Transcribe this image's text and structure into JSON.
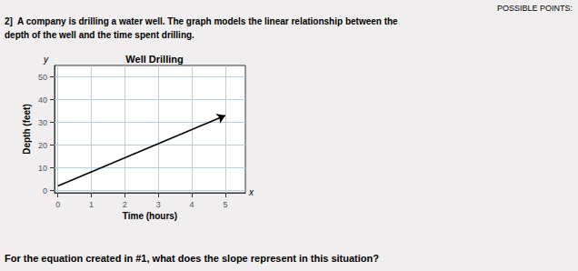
{
  "chart_data": {
    "type": "line",
    "title": "Well Drilling",
    "xlabel": "Time (hours)",
    "ylabel": "Depth (feet)",
    "x": [
      0,
      5.0
    ],
    "values": [
      2,
      33
    ],
    "color": "#000000",
    "xlim": [
      -0.1,
      5.6
    ],
    "ylim": [
      -1,
      55
    ],
    "xticks": [
      0,
      1,
      2,
      3,
      4,
      5
    ],
    "yticks": [
      0,
      10,
      20,
      30,
      40,
      50
    ],
    "grid": true,
    "header": [
      "2]  A company is drilling a water well. The graph models the linear relationship between the",
      "depth of the well and the time spent drilling."
    ],
    "footer": "For the equation created in #1, what does the slope represent in this situation?",
    "annotations": [
      "POSSIBLE POINTS:",
      "x",
      "y"
    ]
  }
}
